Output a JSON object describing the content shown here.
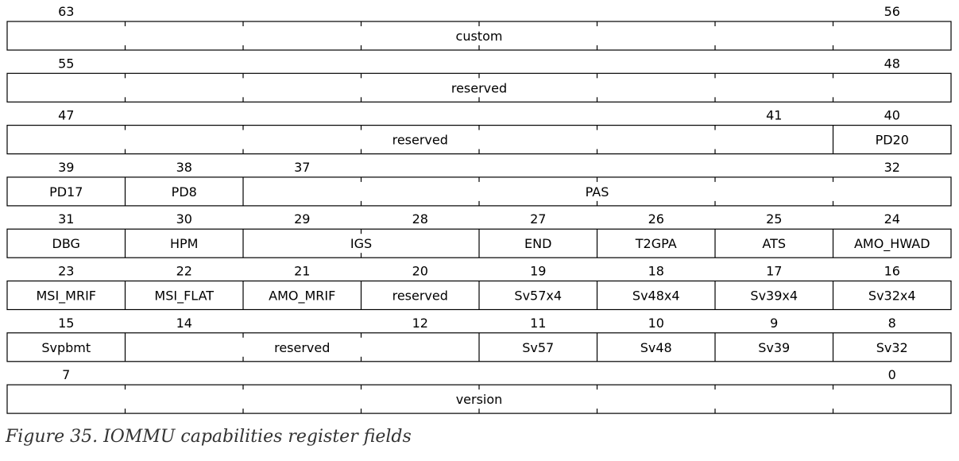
{
  "rows": [
    {
      "fields": [
        {
          "name": "custom",
          "bits": [
            63,
            56
          ]
        }
      ]
    },
    {
      "fields": [
        {
          "name": "reserved",
          "bits": [
            55,
            48
          ]
        }
      ]
    },
    {
      "fields": [
        {
          "name": "reserved",
          "bits": [
            47,
            41
          ]
        },
        {
          "name": "PD20",
          "bits": [
            40
          ]
        }
      ]
    },
    {
      "fields": [
        {
          "name": "PD17",
          "bits": [
            39
          ]
        },
        {
          "name": "PD8",
          "bits": [
            38
          ]
        },
        {
          "name": "PAS",
          "bits": [
            37,
            32
          ]
        }
      ]
    },
    {
      "fields": [
        {
          "name": "DBG",
          "bits": [
            31
          ]
        },
        {
          "name": "HPM",
          "bits": [
            30
          ]
        },
        {
          "name": "IGS",
          "bits": [
            29,
            28
          ]
        },
        {
          "name": "END",
          "bits": [
            27
          ]
        },
        {
          "name": "T2GPA",
          "bits": [
            26
          ]
        },
        {
          "name": "ATS",
          "bits": [
            25
          ]
        },
        {
          "name": "AMO_HWAD",
          "bits": [
            24
          ]
        }
      ]
    },
    {
      "fields": [
        {
          "name": "MSI_MRIF",
          "bits": [
            23
          ]
        },
        {
          "name": "MSI_FLAT",
          "bits": [
            22
          ]
        },
        {
          "name": "AMO_MRIF",
          "bits": [
            21
          ]
        },
        {
          "name": "reserved",
          "bits": [
            20
          ]
        },
        {
          "name": "Sv57x4",
          "bits": [
            19
          ]
        },
        {
          "name": "Sv48x4",
          "bits": [
            18
          ]
        },
        {
          "name": "Sv39x4",
          "bits": [
            17
          ]
        },
        {
          "name": "Sv32x4",
          "bits": [
            16
          ]
        }
      ]
    },
    {
      "fields": [
        {
          "name": "Svpbmt",
          "bits": [
            15
          ]
        },
        {
          "name": "reserved",
          "bits": [
            14,
            12
          ]
        },
        {
          "name": "Sv57",
          "bits": [
            11
          ]
        },
        {
          "name": "Sv48",
          "bits": [
            10
          ]
        },
        {
          "name": "Sv39",
          "bits": [
            9
          ]
        },
        {
          "name": "Sv32",
          "bits": [
            8
          ]
        }
      ]
    },
    {
      "fields": [
        {
          "name": "version",
          "bits": [
            7,
            0
          ]
        }
      ]
    }
  ],
  "caption": "Figure 35. IOMMU capabilities register fields"
}
